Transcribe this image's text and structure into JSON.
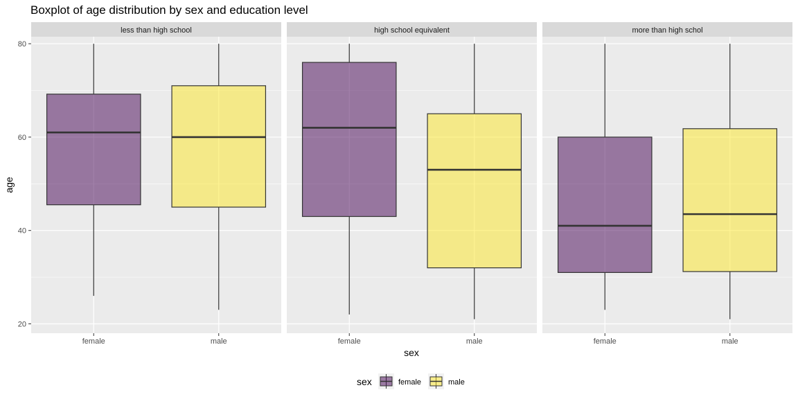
{
  "chart_data": {
    "type": "boxplot",
    "title": "Boxplot of age distribution by sex and education level",
    "xlabel": "sex",
    "ylabel": "age",
    "ylim": [
      18,
      81.5
    ],
    "yticks": [
      20,
      40,
      60,
      80
    ],
    "categories": [
      "female",
      "male"
    ],
    "grid": true,
    "legend": {
      "title": "sex",
      "position": "bottom",
      "entries": [
        {
          "name": "female",
          "color": "#440154"
        },
        {
          "name": "male",
          "color": "#FDE725"
        }
      ]
    },
    "fill_alpha": 0.5,
    "panels": [
      {
        "label": "less than high school",
        "boxes": [
          {
            "category": "female",
            "min": 26,
            "q1": 45.5,
            "median": 61,
            "q3": 69.2,
            "max": 80
          },
          {
            "category": "male",
            "min": 23,
            "q1": 45,
            "median": 60,
            "q3": 71,
            "max": 80
          }
        ]
      },
      {
        "label": "high school equivalent",
        "boxes": [
          {
            "category": "female",
            "min": 22,
            "q1": 43,
            "median": 62,
            "q3": 76,
            "max": 80
          },
          {
            "category": "male",
            "min": 21,
            "q1": 32,
            "median": 53,
            "q3": 65,
            "max": 80
          }
        ]
      },
      {
        "label": "more than high schol",
        "boxes": [
          {
            "category": "female",
            "min": 23,
            "q1": 31,
            "median": 41,
            "q3": 60,
            "max": 80
          },
          {
            "category": "male",
            "min": 21,
            "q1": 31.2,
            "median": 43.5,
            "q3": 61.8,
            "max": 80
          }
        ]
      }
    ]
  }
}
